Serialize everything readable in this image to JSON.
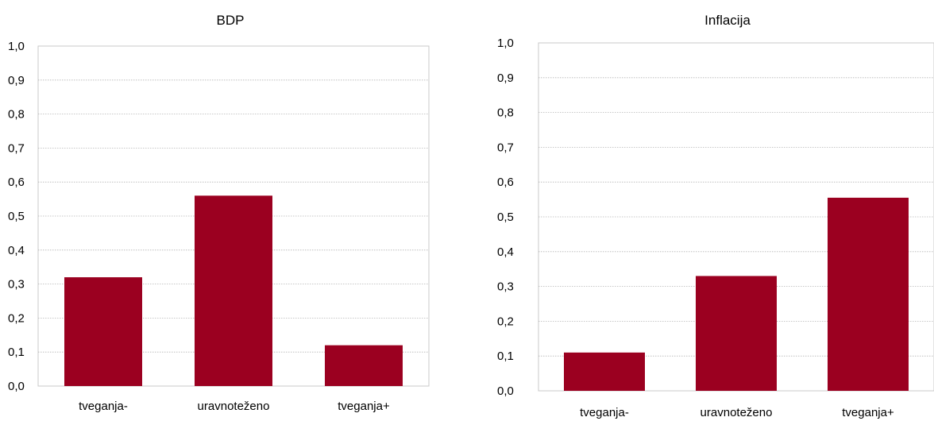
{
  "chart_data": [
    {
      "type": "bar",
      "title": "BDP",
      "categories": [
        "tveganja-",
        "uravnoteženo",
        "tveganja+"
      ],
      "values": [
        0.32,
        0.56,
        0.12
      ],
      "ylim": [
        0,
        1.0
      ],
      "yticks": [
        "0,0",
        "0,1",
        "0,2",
        "0,3",
        "0,4",
        "0,5",
        "0,6",
        "0,7",
        "0,8",
        "0,9",
        "1,0"
      ],
      "grid": true,
      "bar_color": "#9b0020"
    },
    {
      "type": "bar",
      "title": "Inflacija",
      "categories": [
        "tveganja-",
        "uravnoteženo",
        "tveganja+"
      ],
      "values": [
        0.11,
        0.33,
        0.555
      ],
      "ylim": [
        0,
        1.0
      ],
      "yticks": [
        "0,0",
        "0,1",
        "0,2",
        "0,3",
        "0,4",
        "0,5",
        "0,6",
        "0,7",
        "0,8",
        "0,9",
        "1,0"
      ],
      "grid": true,
      "bar_color": "#9b0020"
    }
  ]
}
